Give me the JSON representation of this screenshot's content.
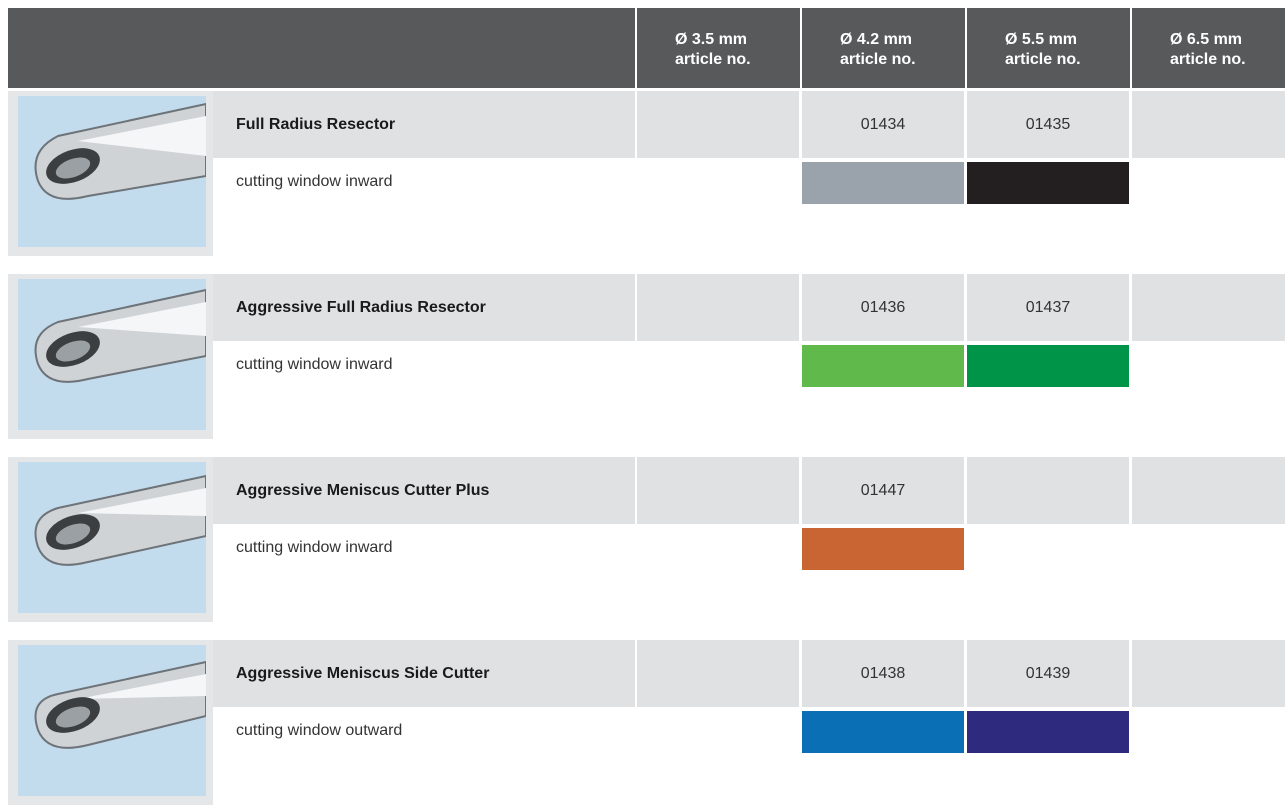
{
  "header": {
    "columns": [
      {
        "diameter": "Ø 3.5 mm",
        "label": "article no."
      },
      {
        "diameter": "Ø 4.2 mm",
        "label": "article no."
      },
      {
        "diameter": "Ø 5.5 mm",
        "label": "article no."
      },
      {
        "diameter": "Ø 6.5 mm",
        "label": "article no."
      }
    ]
  },
  "rows": [
    {
      "name": "Full Radius Resector",
      "description": "cutting window inward",
      "articles": [
        null,
        "01434",
        "01435",
        null
      ],
      "colors": [
        null,
        "#9aa2ab",
        "#231f20",
        null
      ]
    },
    {
      "name": "Aggressive Full Radius Resector",
      "description": "cutting window inward",
      "articles": [
        null,
        "01436",
        "01437",
        null
      ],
      "colors": [
        null,
        "#5fba4b",
        "#009448",
        null
      ]
    },
    {
      "name": "Aggressive Meniscus Cutter Plus",
      "description": "cutting window inward",
      "articles": [
        null,
        "01447",
        null,
        null
      ],
      "colors": [
        null,
        "#c86533",
        null,
        null
      ]
    },
    {
      "name": "Aggressive Meniscus Side Cutter",
      "description": "cutting window outward",
      "articles": [
        null,
        "01438",
        "01439",
        null
      ],
      "colors": [
        null,
        "#0b6fb6",
        "#2e2a7d",
        null
      ]
    }
  ]
}
